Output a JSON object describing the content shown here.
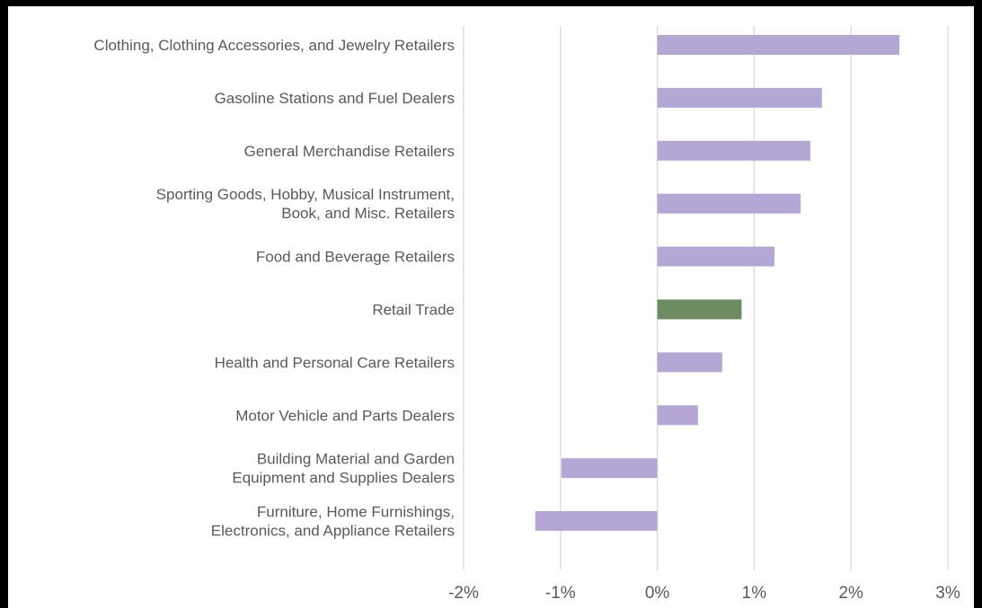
{
  "chart_data": {
    "type": "bar",
    "orientation": "horizontal",
    "categories": [
      [
        "Clothing, Clothing Accessories, and Jewelry Retailers"
      ],
      [
        "Gasoline Stations and Fuel Dealers"
      ],
      [
        "General Merchandise Retailers"
      ],
      [
        "Sporting Goods, Hobby, Musical Instrument,",
        "Book, and Misc. Retailers"
      ],
      [
        "Food and Beverage Retailers"
      ],
      [
        "Retail Trade"
      ],
      [
        "Health and Personal Care Retailers"
      ],
      [
        "Motor Vehicle and Parts Dealers"
      ],
      [
        "Building Material and Garden",
        "Equipment and Supplies Dealers"
      ],
      [
        "Furniture, Home Furnishings,",
        "Electronics, and Appliance Retailers"
      ]
    ],
    "values": [
      2.5,
      1.7,
      1.58,
      1.48,
      1.21,
      0.87,
      0.67,
      0.42,
      -0.99,
      -1.26
    ],
    "colors": [
      "#b4a7d6",
      "#b4a7d6",
      "#b4a7d6",
      "#b4a7d6",
      "#b4a7d6",
      "#6d8b61",
      "#b4a7d6",
      "#b4a7d6",
      "#b4a7d6",
      "#b4a7d6"
    ],
    "xlim": [
      -2,
      3
    ],
    "ticks": [
      -2,
      -1,
      0,
      1,
      2,
      3
    ],
    "tick_labels": [
      "-2%",
      "-1%",
      "0%",
      "1%",
      "2%",
      "3%"
    ],
    "grid": "vertical",
    "title": "",
    "xlabel": "",
    "ylabel": ""
  },
  "colors": {
    "bar": "#b4a7d6",
    "highlight": "#6d8b61",
    "grid": "#d9d9d9",
    "text": "#595959",
    "frame": "#000000"
  }
}
